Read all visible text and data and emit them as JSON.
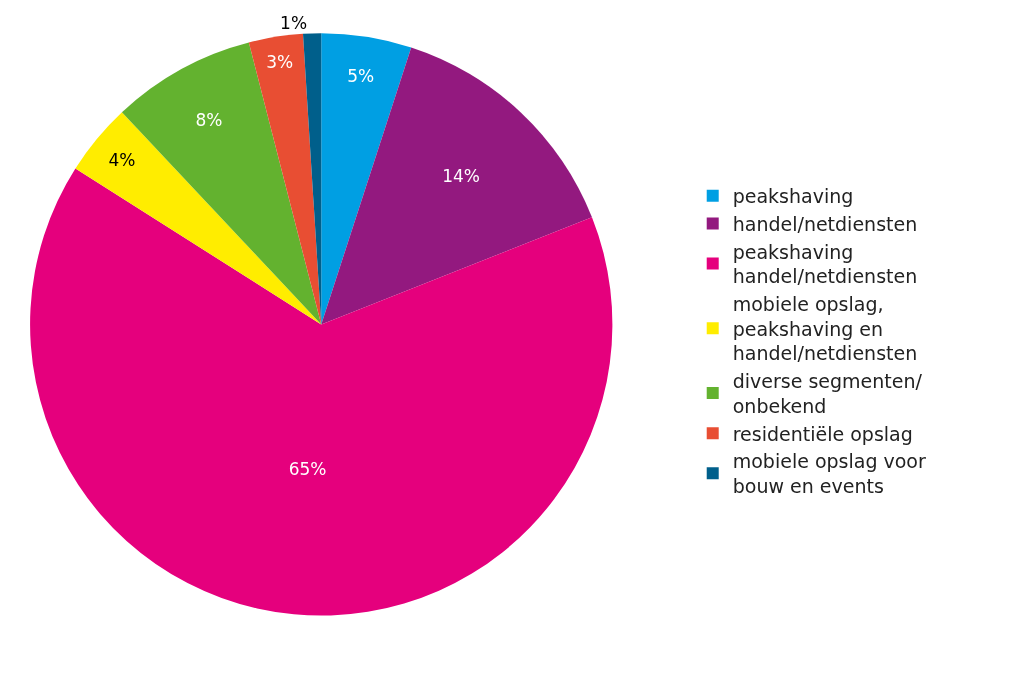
{
  "chart_data": {
    "type": "pie",
    "categories": [
      "peakshaving",
      "handel/netdiensten",
      "peakshaving handel/netdiensten",
      "mobiele opslag, peakshaving en handel/netdiensten",
      "diverse segmenten/ onbekend",
      "residentiële opslag",
      "mobiele opslag voor bouw en events"
    ],
    "values": [
      5,
      14,
      65,
      4,
      8,
      3,
      1
    ],
    "colors": [
      "#009fe3",
      "#93197f",
      "#e5007d",
      "#ffed00",
      "#63b22f",
      "#e84e33",
      "#005f8b"
    ],
    "value_labels": [
      "5%",
      "14%",
      "65%",
      "4%",
      "8%",
      "3%",
      "1%"
    ],
    "legend": "right"
  }
}
